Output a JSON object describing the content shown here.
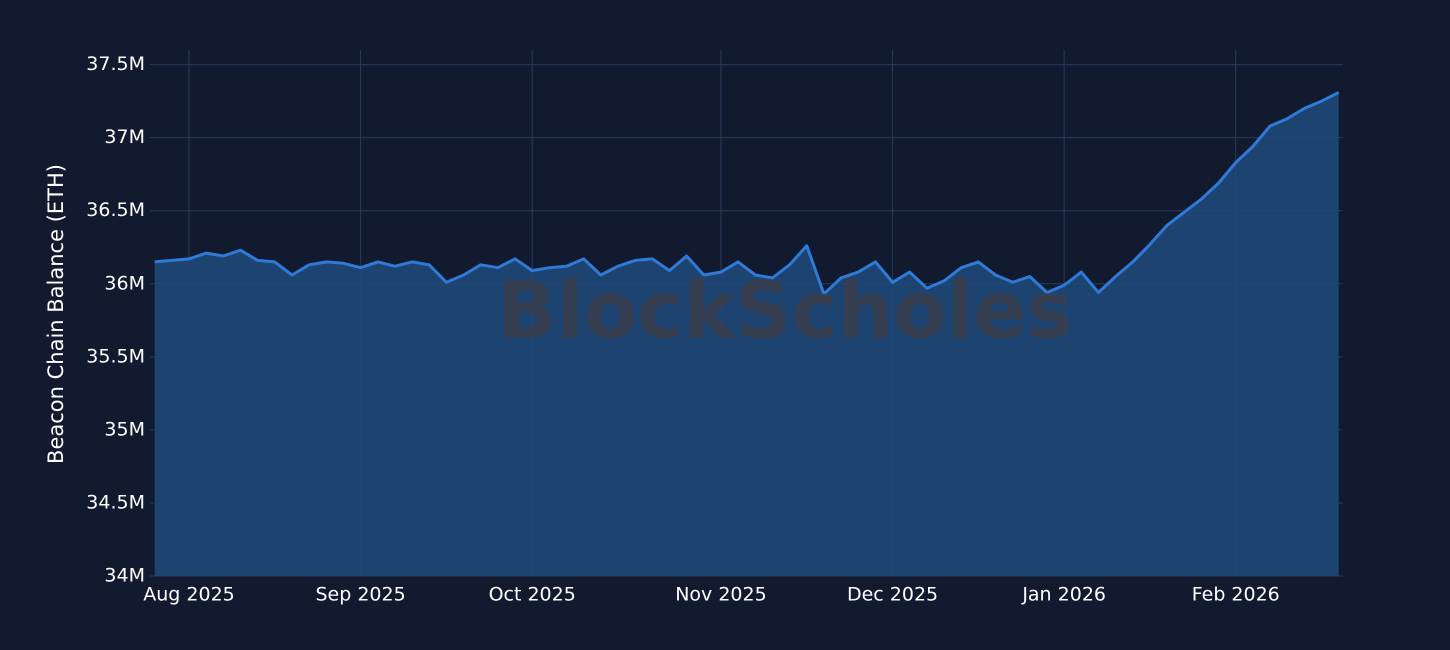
{
  "chart_data": {
    "type": "area",
    "y_label": "Beacon Chain Balance (ETH)",
    "watermark": "BlockScholes",
    "categories": [
      null,
      null,
      "Aug 2025",
      null,
      null,
      null,
      null,
      null,
      null,
      null,
      null,
      null,
      "Sep 2025",
      null,
      null,
      null,
      null,
      null,
      null,
      null,
      null,
      null,
      "Oct 2025",
      null,
      null,
      null,
      null,
      null,
      null,
      null,
      null,
      null,
      null,
      "Nov 2025",
      null,
      null,
      null,
      null,
      null,
      null,
      null,
      null,
      null,
      "Dec 2025",
      null,
      null,
      null,
      null,
      null,
      null,
      null,
      null,
      null,
      "Jan 2026",
      null,
      null,
      null,
      null,
      null,
      null,
      null,
      null,
      null,
      "Feb 2026",
      null,
      null,
      null,
      null,
      null,
      null
    ],
    "series": [
      {
        "name": "Beacon Chain Balance",
        "color": "#2f7ad6",
        "fill": "#1f4879",
        "values": [
          36150000,
          36160000,
          36170000,
          36210000,
          36190000,
          36230000,
          36160000,
          36150000,
          36060000,
          36130000,
          36150000,
          36140000,
          36110000,
          36150000,
          36120000,
          36150000,
          36130000,
          36010000,
          36060000,
          36130000,
          36110000,
          36170000,
          36090000,
          36110000,
          36120000,
          36170000,
          36060000,
          36120000,
          36160000,
          36170000,
          36090000,
          36190000,
          36060000,
          36080000,
          36150000,
          36060000,
          36040000,
          36130000,
          36260000,
          35930000,
          36040000,
          36080000,
          36150000,
          36010000,
          36080000,
          35970000,
          36020000,
          36110000,
          36150000,
          36060000,
          36010000,
          36050000,
          35940000,
          35990000,
          36080000,
          35940000,
          36050000,
          36150000,
          36270000,
          36400000,
          36490000,
          36580000,
          36690000,
          36830000,
          36940000,
          37080000,
          37130000,
          37200000,
          37250000,
          37310000
        ]
      }
    ],
    "ylim": [
      34000000,
      37600000
    ],
    "yticks": [
      {
        "value": 34000000,
        "label": "34M"
      },
      {
        "value": 34500000,
        "label": "34.5M"
      },
      {
        "value": 35000000,
        "label": "35M"
      },
      {
        "value": 35500000,
        "label": "35.5M"
      },
      {
        "value": 36000000,
        "label": "36M"
      },
      {
        "value": 36500000,
        "label": "36.5M"
      },
      {
        "value": 37000000,
        "label": "37M"
      },
      {
        "value": 37500000,
        "label": "37.5M"
      }
    ],
    "grid": true
  }
}
